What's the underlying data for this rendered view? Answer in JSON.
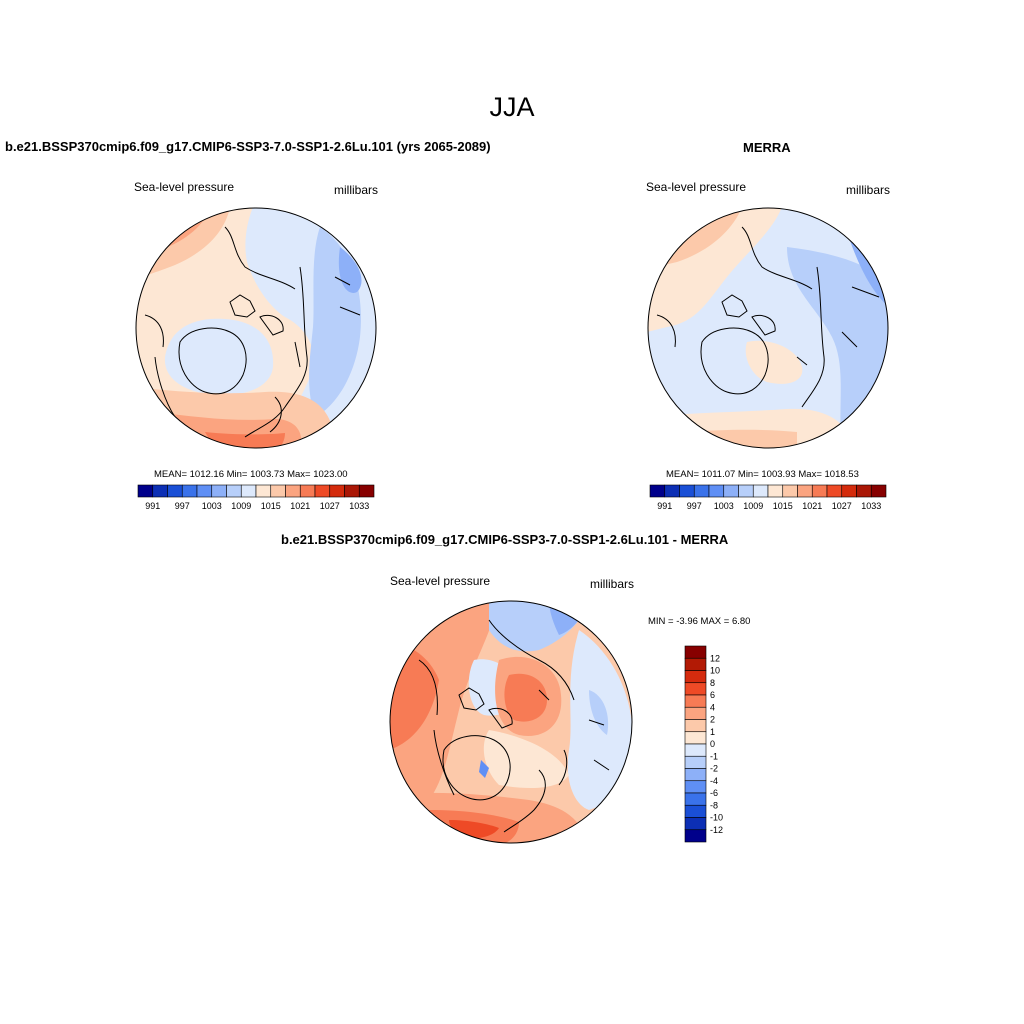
{
  "page": {
    "title": "JJA"
  },
  "panels": [
    {
      "id": "model",
      "title": "b.e21.BSSP370cmip6.f09_g17.CMIP6-SSP3-7.0-SSP1-2.6Lu.101 (yrs 2065-2089)",
      "left_label": "Sea-level pressure",
      "right_label": "millibars",
      "stats": "MEAN= 1012.16  Min= 1003.73  Max= 1023.00",
      "colorbar": {
        "tick_labels": [
          "991",
          "997",
          "1003",
          "1009",
          "1015",
          "1021",
          "1027",
          "1033"
        ],
        "colors": [
          "#00008b",
          "#0c2fb5",
          "#1a4fd6",
          "#3a72ea",
          "#5f8ff5",
          "#8db0f8",
          "#b7cffa",
          "#dde9fc",
          "#fde7d4",
          "#fcc9aa",
          "#fba480",
          "#f77b55",
          "#ee4a26",
          "#d42b0c",
          "#aa1706",
          "#870000"
        ]
      }
    },
    {
      "id": "obs",
      "title": "MERRA",
      "left_label": "Sea-level pressure",
      "right_label": "millibars",
      "stats": "MEAN= 1011.07  Min= 1003.93  Max= 1018.53",
      "colorbar": {
        "tick_labels": [
          "991",
          "997",
          "1003",
          "1009",
          "1015",
          "1021",
          "1027",
          "1033"
        ],
        "colors": [
          "#00008b",
          "#0c2fb5",
          "#1a4fd6",
          "#3a72ea",
          "#5f8ff5",
          "#8db0f8",
          "#b7cffa",
          "#dde9fc",
          "#fde7d4",
          "#fcc9aa",
          "#fba480",
          "#f77b55",
          "#ee4a26",
          "#d42b0c",
          "#aa1706",
          "#870000"
        ]
      }
    },
    {
      "id": "diff",
      "title": "b.e21.BSSP370cmip6.f09_g17.CMIP6-SSP3-7.0-SSP1-2.6Lu.101 - MERRA",
      "left_label": "Sea-level pressure",
      "right_label": "millibars",
      "stats": "MIN =  -3.96 MAX =   6.80",
      "colorbar": {
        "tick_labels": [
          "12",
          "10",
          "8",
          "6",
          "4",
          "2",
          "1",
          "0",
          "-1",
          "-2",
          "-4",
          "-6",
          "-8",
          "-10",
          "-12"
        ],
        "colors": [
          "#870000",
          "#b21a05",
          "#d52b0e",
          "#ee4a26",
          "#f77b55",
          "#fba480",
          "#fcc9aa",
          "#fde7d4",
          "#dde9fc",
          "#b7cffa",
          "#8db0f8",
          "#5f8ff5",
          "#3a72ea",
          "#1a4fd6",
          "#0c2fb5",
          "#00008b"
        ]
      }
    }
  ],
  "map_colors": {
    "light_red": "#fde7d4",
    "pale_red": "#fcc9aa",
    "salmon": "#fba480",
    "orange_red": "#f77b55",
    "red": "#ee4a26",
    "light_blue": "#dde9fc",
    "pale_blue": "#b7cffa",
    "mid_blue": "#8db0f8",
    "blue": "#5f8ff5"
  }
}
